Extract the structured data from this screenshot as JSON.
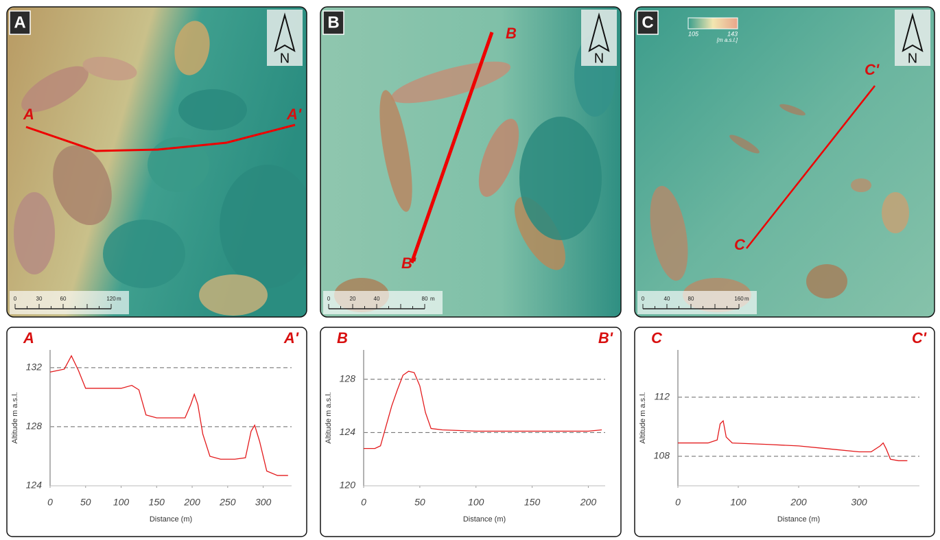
{
  "maps": [
    {
      "panel": "A",
      "start": "A",
      "end": "A'",
      "scale": [
        0,
        30,
        60,
        120
      ],
      "scale_unit": "m",
      "north": "N"
    },
    {
      "panel": "B",
      "start": "B",
      "end": "B'",
      "scale": [
        0,
        20,
        40,
        80
      ],
      "scale_unit": "m",
      "north": "N"
    },
    {
      "panel": "C",
      "start": "C",
      "end": "C'",
      "scale": [
        0,
        40,
        80,
        160
      ],
      "scale_unit": "m",
      "north": "N",
      "legend": {
        "min": 105,
        "max": 143,
        "unit": "[m a.s.l.]"
      }
    }
  ],
  "chart_data": [
    {
      "type": "line",
      "annotations": [
        "A",
        "A'"
      ],
      "x_label": "Distance (m)",
      "y_label": "Altitude m a.s.l.",
      "x": [
        0,
        10,
        20,
        30,
        40,
        50,
        60,
        80,
        100,
        115,
        125,
        135,
        150,
        170,
        190,
        198,
        203,
        208,
        215,
        225,
        240,
        260,
        275,
        283,
        288,
        295,
        305,
        320,
        335
      ],
      "series": [
        {
          "color": "#e31a1c",
          "values": [
            131.7,
            131.8,
            131.9,
            132.8,
            131.8,
            130.6,
            130.6,
            130.6,
            130.6,
            130.8,
            130.5,
            128.8,
            128.6,
            128.6,
            128.6,
            129.5,
            130.2,
            129.5,
            127.5,
            126.0,
            125.8,
            125.8,
            125.9,
            127.7,
            128.1,
            127.0,
            125.0,
            124.7,
            124.7
          ]
        }
      ],
      "xlim": [
        0,
        340
      ],
      "ylim": [
        124,
        133.2
      ],
      "xticks": [
        0,
        50,
        100,
        150,
        200,
        250,
        300
      ],
      "yticks": [
        124,
        128,
        132
      ],
      "grid": true
    },
    {
      "type": "line",
      "annotations": [
        "B",
        "B'"
      ],
      "x_label": "Distance (m)",
      "y_label": "Altitude m a.s.l.",
      "x": [
        0,
        10,
        15,
        20,
        25,
        30,
        35,
        40,
        45,
        50,
        55,
        60,
        70,
        100,
        150,
        200,
        212
      ],
      "series": [
        {
          "color": "#e31a1c",
          "values": [
            122.8,
            122.8,
            123.0,
            124.5,
            126.0,
            127.2,
            128.3,
            128.6,
            128.5,
            127.5,
            125.5,
            124.3,
            124.2,
            124.1,
            124.1,
            124.1,
            124.2
          ]
        }
      ],
      "xlim": [
        0,
        215
      ],
      "ylim": [
        120,
        130.2
      ],
      "xticks": [
        0,
        50,
        100,
        150,
        200
      ],
      "yticks": [
        120,
        124,
        128
      ],
      "grid": true
    },
    {
      "type": "line",
      "annotations": [
        "C",
        "C'"
      ],
      "x_label": "Distance (m)",
      "y_label": "Altitude m a.s.l.",
      "x": [
        0,
        20,
        50,
        65,
        70,
        75,
        80,
        90,
        150,
        200,
        250,
        300,
        320,
        335,
        340,
        345,
        352,
        365,
        380
      ],
      "series": [
        {
          "color": "#e31a1c",
          "values": [
            108.9,
            108.9,
            108.9,
            109.1,
            110.2,
            110.4,
            109.3,
            108.9,
            108.8,
            108.7,
            108.5,
            108.3,
            108.3,
            108.7,
            108.9,
            108.5,
            107.8,
            107.7,
            107.7
          ]
        }
      ],
      "xlim": [
        0,
        400
      ],
      "ylim": [
        106,
        115.2
      ],
      "xticks": [
        0,
        100,
        200,
        300
      ],
      "yticks": [
        108,
        112
      ],
      "grid": true
    }
  ]
}
